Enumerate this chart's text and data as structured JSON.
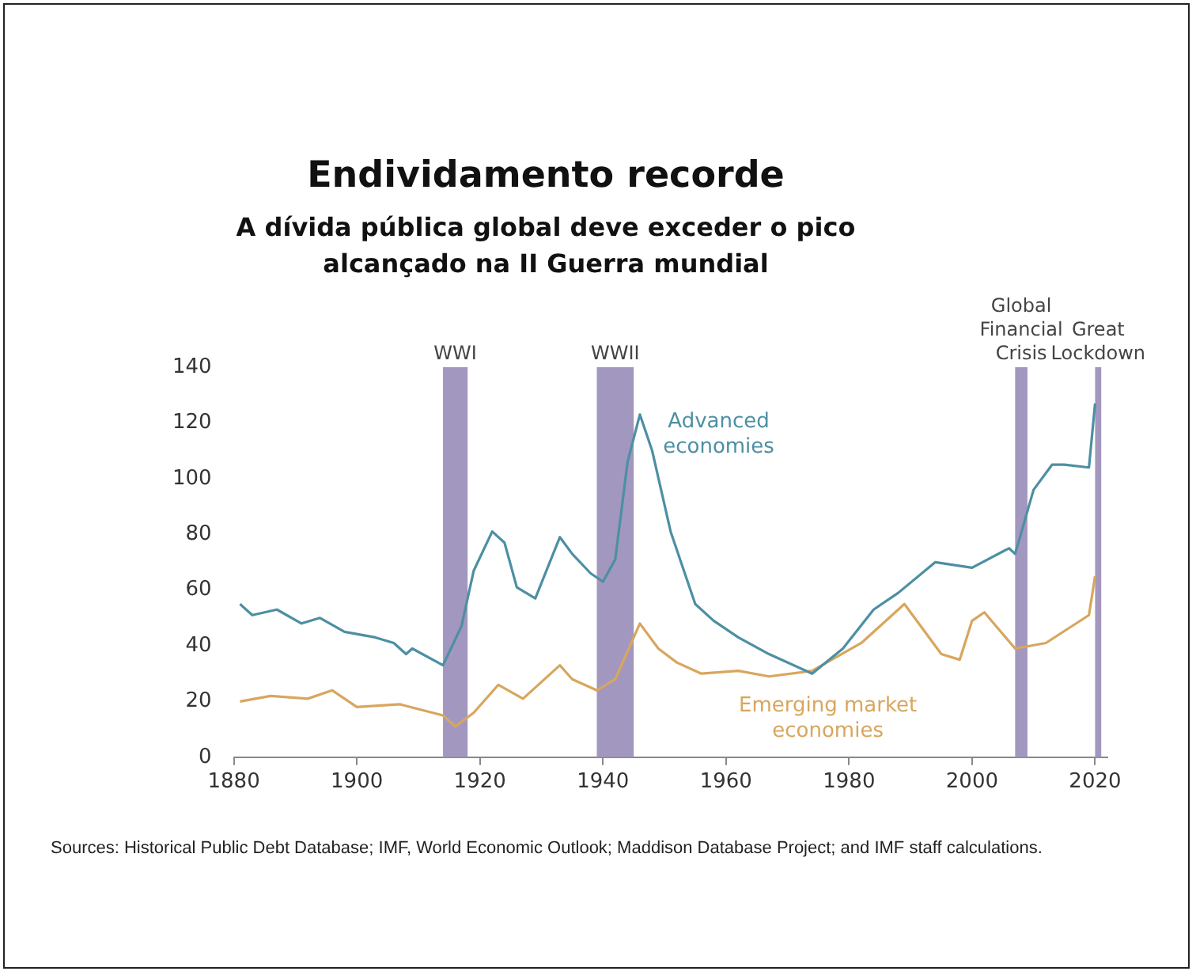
{
  "chart_data": {
    "type": "line",
    "title": "Endividamento recorde",
    "subtitle": "A dívida pública global deve exceder o pico alcançado na II Guerra mundial",
    "xlim": [
      1880,
      2022
    ],
    "xticks": [
      1880,
      1900,
      1920,
      1940,
      1960,
      1980,
      2000,
      2020
    ],
    "ylim": [
      0,
      140
    ],
    "yticks": [
      0,
      20,
      40,
      60,
      80,
      100,
      120,
      140
    ],
    "grid": false,
    "legend": false,
    "marker": "none",
    "line_style": "solid",
    "series": [
      {
        "name": "Advanced economies",
        "color": "#4d8fa3",
        "x": [
          1881,
          1883,
          1887,
          1891,
          1894,
          1898,
          1903,
          1906,
          1908,
          1909,
          1914,
          1917,
          1919,
          1922,
          1924,
          1926,
          1929,
          1933,
          1935,
          1938,
          1940,
          1942,
          1944,
          1946,
          1948,
          1951,
          1955,
          1958,
          1962,
          1967,
          1974,
          1979,
          1984,
          1988,
          1994,
          2000,
          2006,
          2007,
          2010,
          2013,
          2015,
          2019,
          2020
        ],
        "values": [
          55,
          51,
          53,
          48,
          50,
          45,
          43,
          41,
          37,
          39,
          33,
          47,
          67,
          81,
          77,
          61,
          57,
          79,
          73,
          66,
          63,
          71,
          106,
          123,
          110,
          81,
          55,
          49,
          43,
          37,
          30,
          39,
          53,
          59,
          70,
          68,
          75,
          73,
          96,
          105,
          105,
          104,
          127
        ]
      },
      {
        "name": "Emerging market economies",
        "color": "#d8a65e",
        "x": [
          1881,
          1886,
          1892,
          1896,
          1900,
          1907,
          1914,
          1916,
          1919,
          1923,
          1927,
          1933,
          1935,
          1939,
          1942,
          1946,
          1949,
          1952,
          1956,
          1962,
          1967,
          1974,
          1982,
          1989,
          1991,
          1995,
          1998,
          2000,
          2002,
          2007,
          2012,
          2019,
          2020
        ],
        "values": [
          20,
          22,
          21,
          24,
          18,
          19,
          15,
          11,
          16,
          26,
          21,
          33,
          28,
          24,
          28,
          48,
          39,
          34,
          30,
          31,
          29,
          31,
          41,
          55,
          49,
          37,
          35,
          49,
          52,
          39,
          41,
          51,
          65
        ]
      }
    ],
    "bands": [
      {
        "axis": "x",
        "from": 1914,
        "to": 1918,
        "label": "WWI",
        "color": "#a297bf"
      },
      {
        "axis": "x",
        "from": 1939,
        "to": 1945,
        "label": "WWII",
        "color": "#a297bf"
      },
      {
        "axis": "x",
        "from": 2007,
        "to": 2009,
        "label": "Global Financial Crisis",
        "color": "#a297bf"
      },
      {
        "axis": "x",
        "from": 2020,
        "to": 2021,
        "label": "Great Lockdown",
        "color": "#a297bf"
      }
    ],
    "annotations": [
      "Sources: Historical Public Debt Database; IMF, World Economic Outlook; Maddison Database Project; and IMF staff calculations."
    ]
  }
}
